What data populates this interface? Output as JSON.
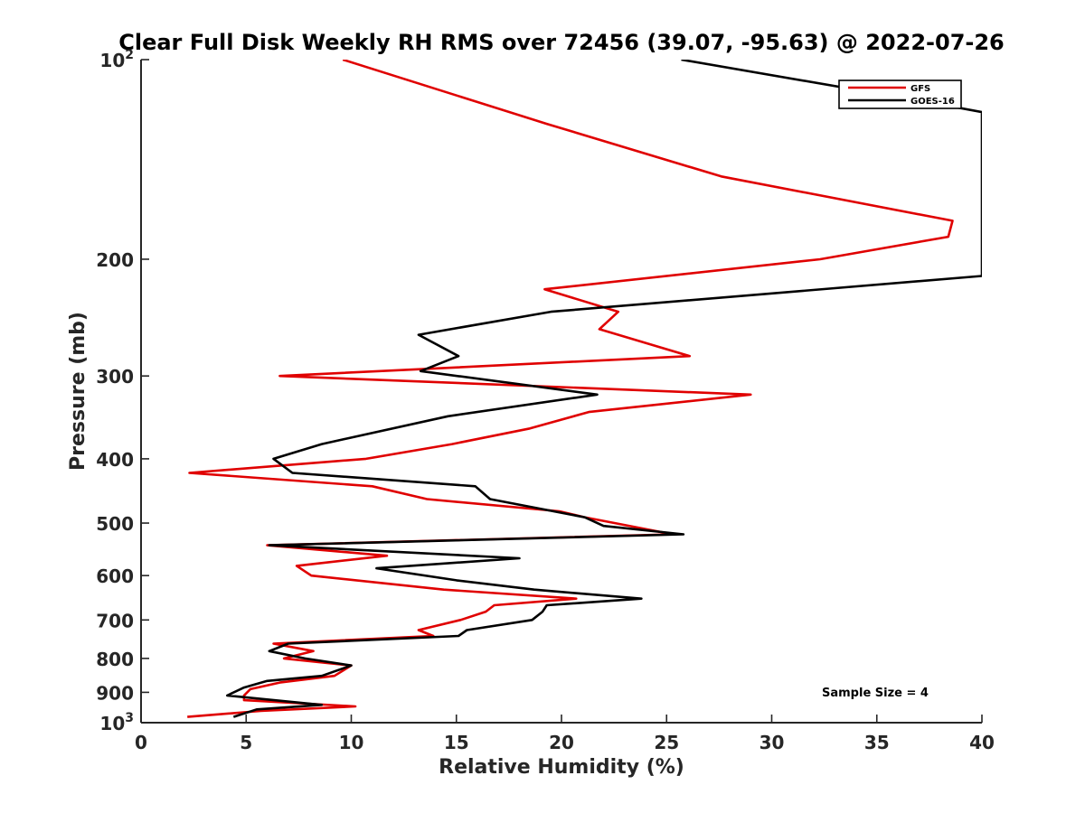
{
  "chart_data": {
    "type": "line",
    "title": "Clear Full Disk Weekly RH RMS over 72456 (39.07, -95.63) @ 2022-07-26",
    "xlabel": "Relative Humidity (%)",
    "ylabel": "Pressure (mb)",
    "xlim": [
      0,
      40
    ],
    "ylim": [
      100,
      1000
    ],
    "yscale": "log",
    "yreversed": true,
    "x_ticks": [
      "0",
      "5",
      "10",
      "15",
      "20",
      "25",
      "30",
      "35",
      "40"
    ],
    "y_ticks": [
      {
        "value": 100,
        "label": "10",
        "sup": "2"
      },
      {
        "value": 200,
        "label": "200",
        "sup": ""
      },
      {
        "value": 300,
        "label": "300",
        "sup": ""
      },
      {
        "value": 400,
        "label": "400",
        "sup": ""
      },
      {
        "value": 500,
        "label": "500",
        "sup": ""
      },
      {
        "value": 600,
        "label": "600",
        "sup": ""
      },
      {
        "value": 700,
        "label": "700",
        "sup": ""
      },
      {
        "value": 800,
        "label": "800",
        "sup": ""
      },
      {
        "value": 900,
        "label": "900",
        "sup": ""
      },
      {
        "value": 1000,
        "label": "10",
        "sup": "3"
      }
    ],
    "grid": false,
    "legend_position": "top-right",
    "annotation": "Sample Size = 4",
    "series": [
      {
        "name": "GFS",
        "color": "#e00000",
        "points": [
          [
            9.6,
            100
          ],
          [
            19.3,
            125
          ],
          [
            27.6,
            150
          ],
          [
            38.6,
            175
          ],
          [
            38.4,
            185
          ],
          [
            32.3,
            200
          ],
          [
            19.2,
            222
          ],
          [
            22.7,
            240
          ],
          [
            21.8,
            255
          ],
          [
            26.1,
            280
          ],
          [
            6.6,
            300
          ],
          [
            29.0,
            320
          ],
          [
            21.3,
            340
          ],
          [
            18.5,
            360
          ],
          [
            14.8,
            380
          ],
          [
            10.7,
            400
          ],
          [
            2.3,
            420
          ],
          [
            11.0,
            440
          ],
          [
            13.6,
            460
          ],
          [
            19.9,
            480
          ],
          [
            21.1,
            490
          ],
          [
            25.3,
            520
          ],
          [
            6.0,
            540
          ],
          [
            11.7,
            560
          ],
          [
            7.4,
            580
          ],
          [
            8.1,
            600
          ],
          [
            14.4,
            630
          ],
          [
            20.7,
            650
          ],
          [
            16.8,
            665
          ],
          [
            16.4,
            680
          ],
          [
            15.2,
            700
          ],
          [
            13.2,
            725
          ],
          [
            13.9,
            740
          ],
          [
            6.3,
            760
          ],
          [
            8.2,
            780
          ],
          [
            6.8,
            800
          ],
          [
            10.0,
            820
          ],
          [
            9.2,
            850
          ],
          [
            6.6,
            870
          ],
          [
            5.2,
            890
          ],
          [
            4.9,
            910
          ],
          [
            4.9,
            925
          ],
          [
            10.2,
            945
          ],
          [
            5.7,
            960
          ],
          [
            2.2,
            980
          ]
        ]
      },
      {
        "name": "GOES-16",
        "color": "#000000",
        "points": [
          [
            25.7,
            100
          ],
          [
            37.5,
            116
          ],
          [
            40.0,
            120
          ],
          [
            40.0,
            212
          ],
          [
            19.5,
            240
          ],
          [
            13.2,
            260
          ],
          [
            15.1,
            280
          ],
          [
            13.3,
            295
          ],
          [
            21.7,
            320
          ],
          [
            14.6,
            345
          ],
          [
            8.6,
            380
          ],
          [
            6.3,
            400
          ],
          [
            7.2,
            420
          ],
          [
            15.9,
            440
          ],
          [
            16.6,
            460
          ],
          [
            21.1,
            490
          ],
          [
            22.0,
            505
          ],
          [
            25.8,
            520
          ],
          [
            6.1,
            540
          ],
          [
            18.0,
            565
          ],
          [
            11.2,
            585
          ],
          [
            15.0,
            610
          ],
          [
            18.7,
            630
          ],
          [
            23.8,
            650
          ],
          [
            19.3,
            665
          ],
          [
            19.1,
            680
          ],
          [
            18.6,
            700
          ],
          [
            15.5,
            725
          ],
          [
            15.1,
            740
          ],
          [
            7.0,
            760
          ],
          [
            6.1,
            780
          ],
          [
            7.8,
            800
          ],
          [
            10.0,
            820
          ],
          [
            8.6,
            850
          ],
          [
            6.0,
            865
          ],
          [
            4.9,
            885
          ],
          [
            4.1,
            910
          ],
          [
            8.6,
            940
          ],
          [
            5.5,
            955
          ],
          [
            4.4,
            980
          ]
        ]
      }
    ]
  }
}
